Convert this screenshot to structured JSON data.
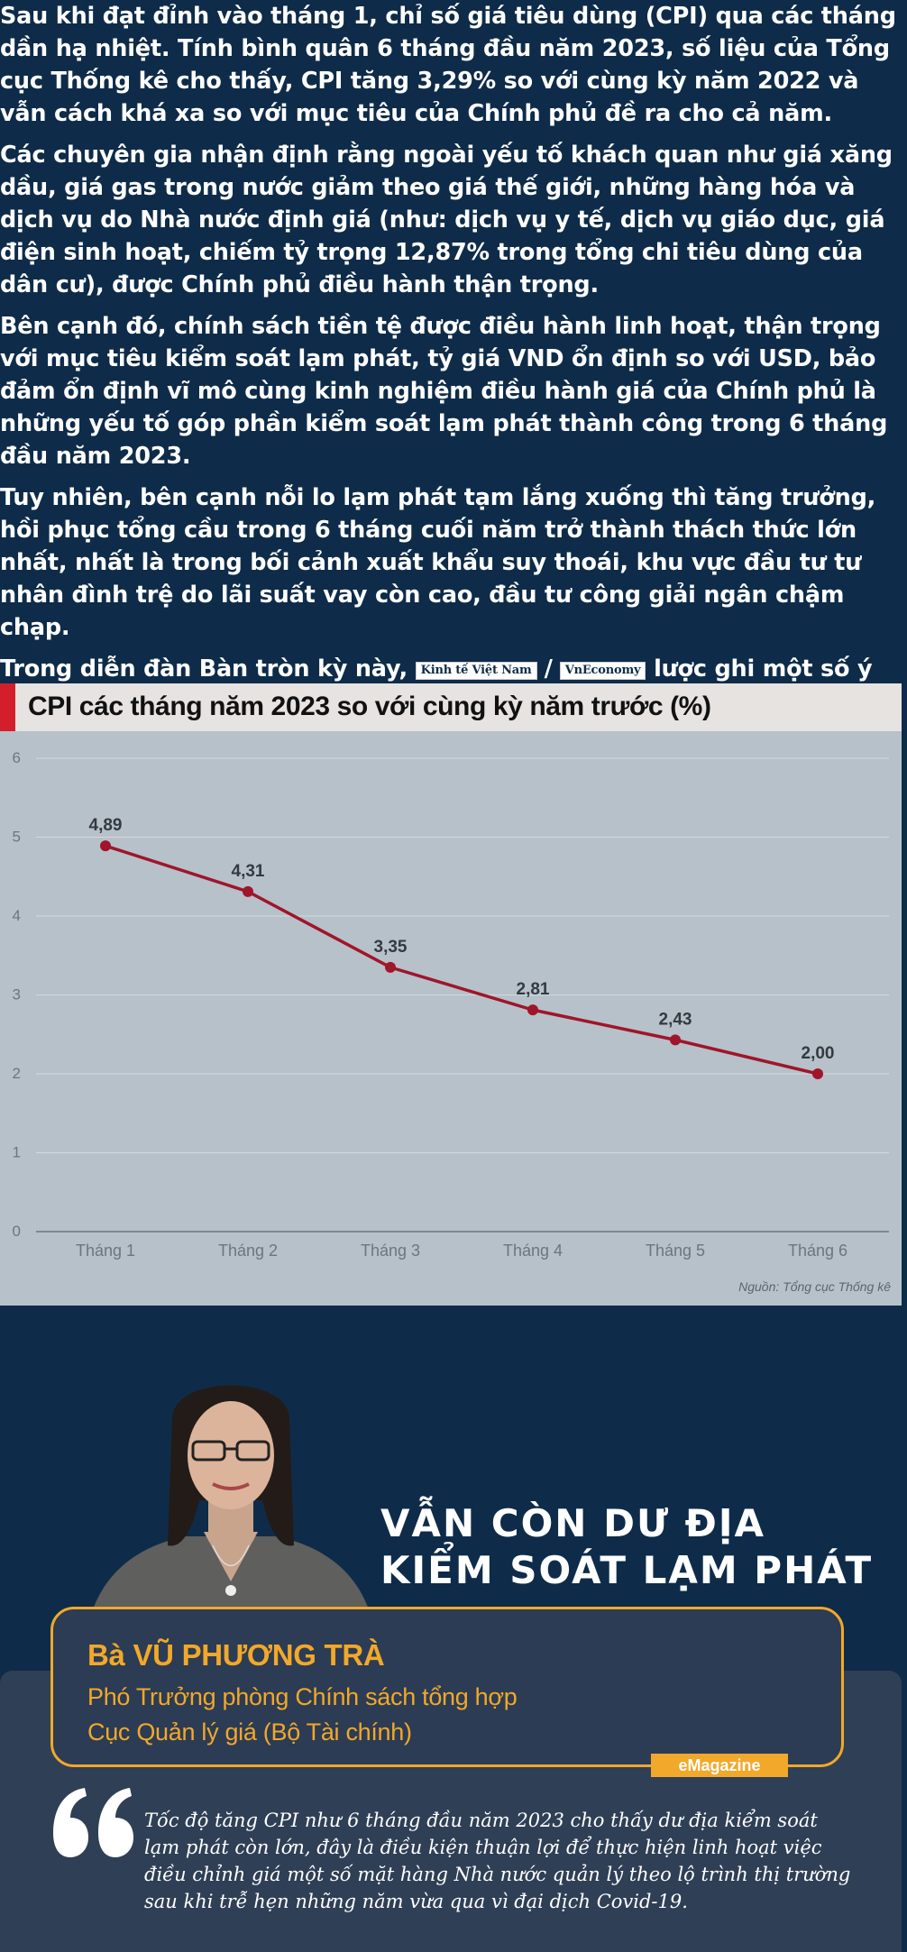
{
  "article": {
    "p1": "Sau khi đạt đỉnh vào tháng 1, chỉ số giá tiêu dùng (CPI) qua các tháng dần hạ nhiệt. Tính bình quân 6 tháng đầu năm 2023, số liệu của Tổng cục Thống kê cho thấy, CPI tăng 3,29% so với cùng kỳ năm 2022 và vẫn cách khá xa so với mục tiêu của Chính phủ đề ra cho cả năm.",
    "p2": "Các chuyên gia nhận định rằng ngoài yếu tố khách quan như giá xăng dầu, giá gas trong nước giảm theo giá thế giới, những hàng hóa và dịch vụ do Nhà nước định giá (như: dịch vụ y tế, dịch vụ giáo dục, giá điện sinh hoạt, chiếm tỷ trọng 12,87% trong tổng chi tiêu dùng của dân cư), được Chính phủ điều hành thận trọng.",
    "p3": "Bên cạnh đó, chính sách tiền tệ được điều hành linh hoạt, thận trọng với mục tiêu kiểm soát lạm phát, tỷ giá VND ổn định so với USD, bảo đảm ổn định vĩ mô cùng kinh nghiệm điều hành giá của Chính phủ là những yếu tố góp phần kiểm soát lạm phát thành công trong 6 tháng đầu năm 2023.",
    "p4": "Tuy nhiên, bên cạnh nỗi lo lạm phát tạm lắng xuống thì tăng trưởng, hồi phục tổng cầu trong 6 tháng cuối năm trở thành thách thức lớn nhất, nhất là trong bối cảnh xuất khẩu suy thoái, khu vực đầu tư tư nhân đình trệ do lãi suất vay còn cao, đầu tư công giải ngân chậm chạp.",
    "p5_before": "Trong diễn đàn Bàn tròn kỳ này,",
    "brand1": "Kinh tế Việt Nam",
    "slash": "/",
    "brand2": "VnEconomy",
    "p5_after": "lược ghi một số ý kiến của đại diện cơ quan quản lý, giới phân tích  về những giải pháp tiếp tục duy trì kiểm soát lạm phát và thúc đẩy tổng cầu, đưa hoạt động của nền kinh tế trở về trạng thái bình thường."
  },
  "chart_data": {
    "type": "line",
    "title": "CPI các tháng năm 2023 so với cùng kỳ năm trước (%)",
    "categories": [
      "Tháng 1",
      "Tháng 2",
      "Tháng 3",
      "Tháng 4",
      "Tháng 5",
      "Tháng 6"
    ],
    "values": [
      4.89,
      4.31,
      3.35,
      2.81,
      2.43,
      2.0
    ],
    "value_labels": [
      "4,89",
      "4,31",
      "3,35",
      "2,81",
      "2,43",
      "2,00"
    ],
    "ylim": [
      0,
      6
    ],
    "yticks": [
      0,
      1,
      2,
      3,
      4,
      5,
      6
    ],
    "grid": true,
    "line_color": "#a0152a",
    "source": "Nguồn: Tổng cục Thống kê"
  },
  "interview": {
    "headline_line1": "VẪN CÒN DƯ ĐỊA",
    "headline_line2": "KIỂM SOÁT LẠM PHÁT",
    "person": "Bà VŨ PHƯƠNG TRÀ",
    "role1": "Phó Trưởng phòng Chính sách tổng hợp",
    "role2": "Cục Quản lý giá (Bộ Tài chính)",
    "badge": "eMagazine",
    "quote": "Tốc độ tăng CPI như 6 tháng đầu năm 2023 cho thấy dư địa kiểm soát lạm phát còn lớn, đây là điều kiện thuận lợi để thực hiện linh hoạt việc điều chỉnh giá một số mặt hàng Nhà nước quản lý theo lộ trình thị trường sau khi trễ hẹn những năm vừa qua vì đại dịch Covid-19.",
    "accent_color": "#f2a82a"
  }
}
